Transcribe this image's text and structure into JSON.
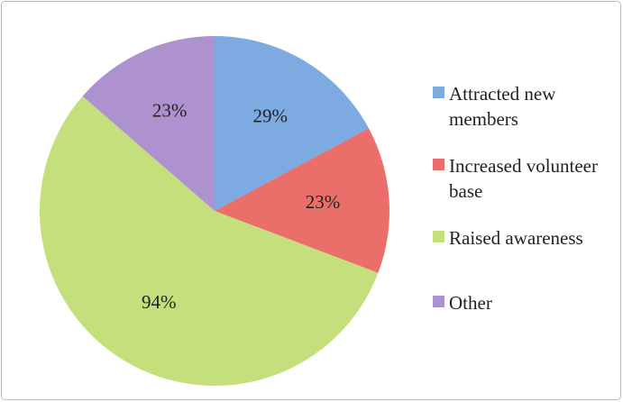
{
  "chart_data": {
    "type": "pie",
    "categories": [
      "Attracted new members",
      "Increased volunteer base",
      "Raised awareness",
      "Other"
    ],
    "values": [
      29,
      23,
      94,
      23
    ],
    "value_labels": [
      "29%",
      "23%",
      "94%",
      "23%"
    ],
    "colors": [
      "#7eaae2",
      "#ea6e69",
      "#c4df7b",
      "#ad92cf"
    ],
    "legend": "right"
  }
}
